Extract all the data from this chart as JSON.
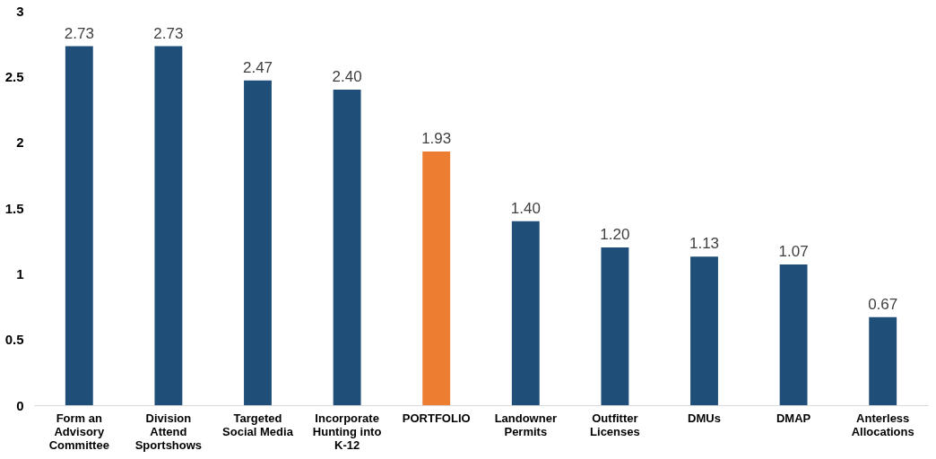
{
  "chart_data": {
    "type": "bar",
    "categories": [
      "Form an Advisory Committee",
      "Division Attend Sportshows",
      "Targeted Social Media",
      "Incorporate Hunting into K-12",
      "PORTFOLIO",
      "Landowner Permits",
      "Outfitter Licenses",
      "DMUs",
      "DMAP",
      "Anterless Allocations"
    ],
    "values": [
      2.73,
      2.73,
      2.47,
      2.4,
      1.93,
      1.4,
      1.2,
      1.13,
      1.07,
      0.67
    ],
    "colors": [
      "#1f4e79",
      "#1f4e79",
      "#1f4e79",
      "#1f4e79",
      "#ed7d31",
      "#1f4e79",
      "#1f4e79",
      "#1f4e79",
      "#1f4e79",
      "#1f4e79"
    ],
    "value_labels": [
      "2.73",
      "2.73",
      "2.47",
      "2.40",
      "1.93",
      "1.40",
      "1.20",
      "1.13",
      "1.07",
      "0.67"
    ],
    "ylim": [
      0,
      3
    ],
    "yticks": [
      0,
      0.5,
      1,
      1.5,
      2,
      2.5,
      3
    ],
    "grid": false
  }
}
